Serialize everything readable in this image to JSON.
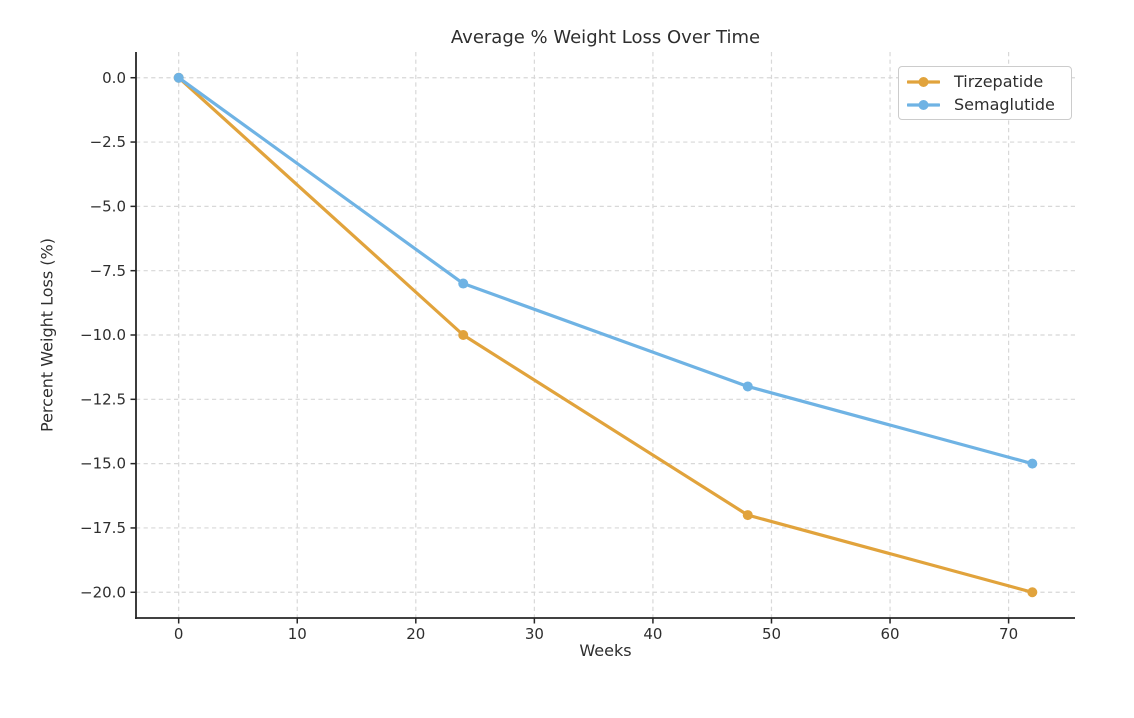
{
  "chart_data": {
    "type": "line",
    "title": "Average % Weight Loss Over Time",
    "xlabel": "Weeks",
    "ylabel": "Percent Weight Loss (%)",
    "x": [
      0,
      24,
      48,
      72
    ],
    "series": [
      {
        "name": "Tirzepatide",
        "color": "#E1A33C",
        "values": [
          0,
          -10,
          -17,
          -20
        ]
      },
      {
        "name": "Semaglutide",
        "color": "#6FB3E4",
        "values": [
          0,
          -8,
          -12,
          -15
        ]
      }
    ],
    "xticks": [
      0,
      10,
      20,
      30,
      40,
      50,
      60,
      70
    ],
    "xtick_labels": [
      "0",
      "10",
      "20",
      "30",
      "40",
      "50",
      "60",
      "70"
    ],
    "yticks": [
      0,
      -2.5,
      -5,
      -7.5,
      -10,
      -12.5,
      -15,
      -17.5,
      -20
    ],
    "ytick_labels": [
      "0.0",
      "−2.5",
      "−5.0",
      "−7.5",
      "−10.0",
      "−12.5",
      "−15.0",
      "−17.5",
      "−20.0"
    ],
    "xlim": [
      -3.6,
      75.6
    ],
    "ylim": [
      -21,
      1
    ],
    "grid": true,
    "grid_style": "dashed",
    "legend_position": "upper right",
    "colors": {
      "text": "#2e2e2e",
      "spine": "#262626",
      "grid": "#d8d8d8",
      "background": "#ffffff"
    }
  }
}
